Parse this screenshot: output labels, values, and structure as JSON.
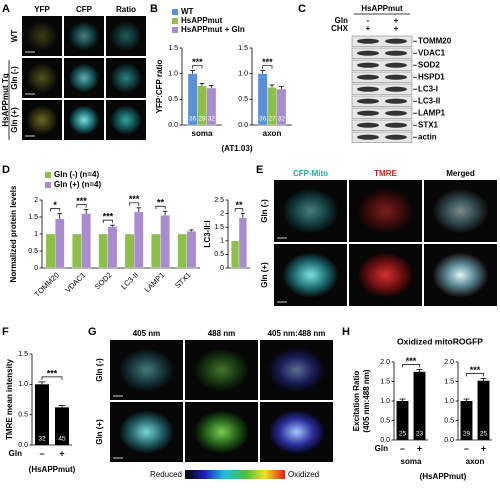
{
  "panel_labels": [
    "A",
    "B",
    "C",
    "D",
    "E",
    "F",
    "G",
    "H"
  ],
  "images_a": {
    "columns": [
      "YFP",
      "CFP",
      "Ratio"
    ],
    "rows": [
      "WT",
      "Gln (-)",
      "Gln (+)"
    ],
    "group": "HsAPPmut Tg"
  },
  "blot_c": {
    "header": "HsAPPmut",
    "conditions": [
      {
        "label": "Gln",
        "marks": [
          "-",
          "+"
        ]
      },
      {
        "label": "CHX",
        "marks": [
          "+",
          "+"
        ]
      }
    ],
    "bands": [
      "TOMM20",
      "VDAC1",
      "SOD2",
      "HSPD1",
      "LC3-I",
      "LC3-II",
      "LAMP1",
      "STX1",
      "actin"
    ]
  },
  "images_e": {
    "columns": [
      "CFP-Mito",
      "TMRE",
      "Merged"
    ],
    "rows": [
      "Gln (-)",
      "Gln (+)"
    ]
  },
  "images_g": {
    "columns": [
      "405 nm",
      "488 nm",
      "405 nm:488 nm"
    ],
    "rows": [
      "Gln (-)",
      "Gln (+)"
    ],
    "colorbar": [
      "Reduced",
      "Oxidized"
    ]
  },
  "chart_data": [
    {
      "type": "bar",
      "ylabel": "YFP:CFP ratio",
      "note": "(AT1.03)",
      "legend": true,
      "categories": [
        "soma"
      ],
      "series": [
        {
          "name": "WT",
          "color": "#5b8fd6",
          "values": [
            1.0
          ],
          "errors": [
            0.06
          ],
          "n_labels": [
            "36"
          ]
        },
        {
          "name": "HsAPPmut",
          "color": "#8dbf4a",
          "values": [
            0.76
          ],
          "errors": [
            0.05
          ],
          "n_labels": [
            "28"
          ]
        },
        {
          "name": "HsAPPmut + Gln",
          "color": "#a98bd0",
          "values": [
            0.72
          ],
          "errors": [
            0.05
          ],
          "n_labels": [
            "32"
          ]
        }
      ],
      "ylim": [
        0,
        1.5
      ],
      "yticks": [
        {
          "value": 0,
          "label": "0.0"
        },
        {
          "value": 0.5,
          "label": "0.5"
        },
        {
          "value": 1,
          "label": "1.0"
        },
        {
          "value": 1.5,
          "label": "1.5"
        }
      ],
      "significance": "***"
    },
    {
      "type": "bar",
      "categories": [
        "axon"
      ],
      "series": [
        {
          "color": "#5b8fd6",
          "values": [
            1.0
          ],
          "errors": [
            0.06
          ],
          "n_labels": [
            "36"
          ]
        },
        {
          "color": "#8dbf4a",
          "values": [
            0.73
          ],
          "errors": [
            0.05
          ],
          "n_labels": [
            "27"
          ]
        },
        {
          "color": "#a98bd0",
          "values": [
            0.7
          ],
          "errors": [
            0.05
          ],
          "n_labels": [
            "32"
          ]
        }
      ],
      "ylim": [
        0,
        1.5
      ],
      "yticks": [
        {
          "value": 0,
          "label": "0.0"
        },
        {
          "value": 0.5,
          "label": "0.5"
        },
        {
          "value": 1,
          "label": "1.0"
        },
        {
          "value": 1.5,
          "label": "1.5"
        }
      ],
      "significance": "***"
    },
    {
      "type": "bar",
      "ylabel": "Normalized protein levels",
      "legend": true,
      "categories": [
        "TOMM20",
        "VDAC1",
        "SOD2",
        "LC3-II",
        "LAMP1",
        "STX1"
      ],
      "series": [
        {
          "name": "Gln (-) (n=4)",
          "color": "#8dbf4a",
          "values": [
            1,
            1,
            1,
            1,
            1,
            1
          ]
        },
        {
          "name": "Gln (+) (n=4)",
          "color": "#a98bd0",
          "values": [
            1.45,
            1.6,
            1.22,
            1.65,
            1.55,
            1.08
          ],
          "errors": [
            0.15,
            0.12,
            0.04,
            0.12,
            0.12,
            0.04
          ]
        }
      ],
      "ylim": [
        0,
        2
      ],
      "yticks": [
        0,
        0.5,
        1,
        1.5,
        2
      ],
      "significance": [
        "*",
        "***",
        "***",
        "***",
        "**",
        null
      ]
    },
    {
      "type": "bar",
      "ylabel": "LC3-II:I",
      "categories": [
        null
      ],
      "series": [
        {
          "color": "#8dbf4a",
          "values": [
            1
          ]
        },
        {
          "color": "#a98bd0",
          "values": [
            1.85
          ],
          "errors": [
            0.15
          ]
        }
      ],
      "ylim": [
        0,
        2.5
      ],
      "yticks": [
        0,
        0.5,
        1,
        1.5,
        2,
        2.5
      ],
      "significance": "**"
    },
    {
      "type": "bar",
      "ylabel": "TMRE mean intensity",
      "group_label": "Gln",
      "note": "(HsAPPmut)",
      "categories": [
        "–",
        "+"
      ],
      "series": [
        {
          "color": "#000000",
          "values": [
            1.0,
            0.62
          ],
          "errors": [
            0.04,
            0.03
          ],
          "n_labels": [
            "32",
            "45"
          ]
        }
      ],
      "ylim": [
        0,
        1.5
      ],
      "yticks": [
        {
          "value": 0,
          "label": "0.0"
        },
        {
          "value": 0.5,
          "label": "0.5"
        },
        {
          "value": 1,
          "label": "1.0"
        },
        {
          "value": 1.5,
          "label": "1.5"
        }
      ],
      "significance": "***"
    },
    {
      "type": "bar",
      "title": "Oxidized mitoROGFP",
      "ylabel": [
        "Excitation Ratio",
        "(405 nm:488 nm)"
      ],
      "xlabel": "soma",
      "group_label": "Gln",
      "note": "(HsAPPmut)",
      "categories": [
        "–",
        "+"
      ],
      "series": [
        {
          "color": "#000000",
          "values": [
            1.0,
            1.75
          ],
          "errors": [
            0.05,
            0.06
          ],
          "n_labels": [
            "25",
            "23"
          ]
        }
      ],
      "ylim": [
        0,
        2
      ],
      "yticks": [
        {
          "value": 0,
          "label": "0.0"
        },
        {
          "value": 0.5,
          "label": "0.5"
        },
        {
          "value": 1,
          "label": "1.0"
        },
        {
          "value": 1.5,
          "label": "1.5"
        },
        {
          "value": 2,
          "label": "2.0"
        }
      ],
      "significance": "***"
    },
    {
      "type": "bar",
      "xlabel": "axon",
      "categories": [
        "–",
        "+"
      ],
      "series": [
        {
          "color": "#000000",
          "values": [
            1.0,
            1.52
          ],
          "errors": [
            0.05,
            0.06
          ],
          "n_labels": [
            "29",
            "25"
          ]
        }
      ],
      "ylim": [
        0,
        2
      ],
      "yticks": [
        {
          "value": 0,
          "label": "0.0"
        },
        {
          "value": 0.5,
          "label": "0.5"
        },
        {
          "value": 1,
          "label": "1.0"
        },
        {
          "value": 1.5,
          "label": "1.5"
        },
        {
          "value": 2,
          "label": "2.0"
        }
      ],
      "significance": "***"
    }
  ]
}
